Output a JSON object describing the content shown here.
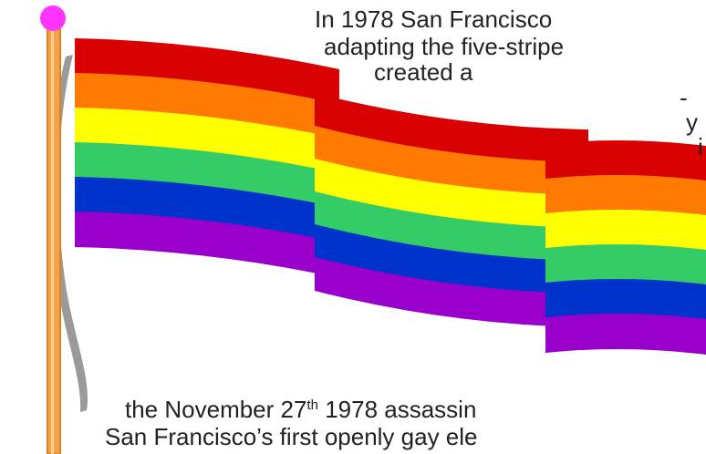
{
  "text_lines": [
    {
      "text": "In 1978 San Francisco"
    },
    {
      "text": "adapting the five-stripe"
    },
    {
      "text": "created a"
    },
    {
      "text": "-"
    },
    {
      "text": "y"
    },
    {
      "text": "i"
    },
    {
      "parts": [
        "the November 27",
        "th",
        " 1978 assassin"
      ]
    },
    {
      "text": "San Francisco’s first openly gay ele"
    }
  ]
}
